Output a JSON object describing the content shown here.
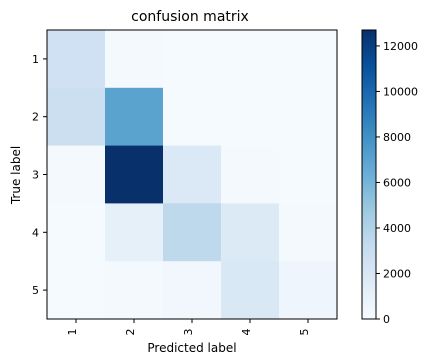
{
  "chart_data": {
    "type": "heatmap",
    "title": "confusion matrix",
    "xlabel": "Predicted label",
    "ylabel": "True label",
    "x_categories": [
      "1",
      "2",
      "3",
      "4",
      "5"
    ],
    "y_categories": [
      "1",
      "2",
      "3",
      "4",
      "5"
    ],
    "values": [
      [
        2600,
        200,
        100,
        100,
        100
      ],
      [
        2800,
        7000,
        100,
        100,
        100
      ],
      [
        200,
        12700,
        1800,
        200,
        100
      ],
      [
        100,
        1100,
        3500,
        1700,
        200
      ],
      [
        100,
        200,
        400,
        1900,
        600
      ]
    ],
    "colormap": "Blues",
    "colorbar": {
      "min": 0,
      "max": 12700,
      "ticks": [
        0,
        2000,
        4000,
        6000,
        8000,
        10000,
        12000
      ]
    },
    "colors": {
      "low": "#f7fbff",
      "high": "#08306b"
    }
  }
}
